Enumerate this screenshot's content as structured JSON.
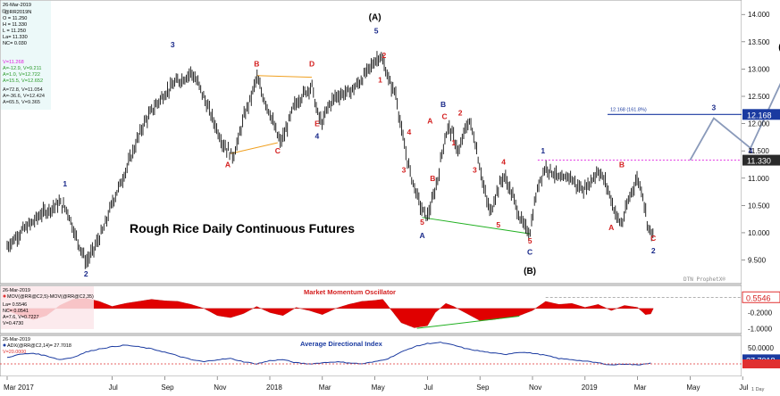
{
  "chart_data": [
    {
      "type": "bar",
      "panel": "price",
      "title": "Rough Rice Daily Continuous Futures",
      "watermark": "DTN ProphetX®",
      "ylim": [
        9.1,
        14.2
      ],
      "y_ticks": [
        "9.500",
        "10.000",
        "10.500",
        "11.000",
        "11.500",
        "12.000",
        "12.500",
        "13.000",
        "13.500",
        "14.000"
      ],
      "y_tick_values": [
        9.5,
        10.0,
        10.5,
        11.0,
        11.5,
        12.0,
        12.5,
        13.0,
        13.5,
        14.0
      ],
      "x_ticks": [
        "Mar 2017",
        "Jul",
        "Sep",
        "Nov",
        "2018",
        "Mar",
        "May",
        "Jul",
        "Sep",
        "Nov",
        "2019",
        "Mar",
        "May",
        "Jul"
      ],
      "x_tick_months": [
        0,
        4,
        6,
        8,
        10,
        12,
        14,
        16,
        18,
        20,
        22,
        24,
        26,
        28
      ],
      "last_month": 24.6,
      "price_path": [
        [
          0,
          9.75
        ],
        [
          0.6,
          10.05
        ],
        [
          1.0,
          10.2
        ],
        [
          1.3,
          10.35
        ],
        [
          1.7,
          10.45
        ],
        [
          2.0,
          10.55
        ],
        [
          2.3,
          10.4
        ],
        [
          2.6,
          9.95
        ],
        [
          2.9,
          9.6
        ],
        [
          3.0,
          9.45
        ],
        [
          3.3,
          9.7
        ],
        [
          3.7,
          10.1
        ],
        [
          4.0,
          10.55
        ],
        [
          4.4,
          11.0
        ],
        [
          4.8,
          11.5
        ],
        [
          5.2,
          12.0
        ],
        [
          5.6,
          12.3
        ],
        [
          6.0,
          12.55
        ],
        [
          6.4,
          12.75
        ],
        [
          6.8,
          12.85
        ],
        [
          7.0,
          12.95
        ],
        [
          7.3,
          12.7
        ],
        [
          7.6,
          12.35
        ],
        [
          7.9,
          12.0
        ],
        [
          8.2,
          11.65
        ],
        [
          8.5,
          11.45
        ],
        [
          8.6,
          11.4
        ],
        [
          8.8,
          11.7
        ],
        [
          9.0,
          12.1
        ],
        [
          9.3,
          12.5
        ],
        [
          9.5,
          12.85
        ],
        [
          9.7,
          12.55
        ],
        [
          10.0,
          12.2
        ],
        [
          10.2,
          11.9
        ],
        [
          10.4,
          11.65
        ],
        [
          10.6,
          11.85
        ],
        [
          10.9,
          12.3
        ],
        [
          11.2,
          12.5
        ],
        [
          11.4,
          12.6
        ],
        [
          11.6,
          12.7
        ],
        [
          11.8,
          12.2
        ],
        [
          12.0,
          12.0
        ],
        [
          12.2,
          12.3
        ],
        [
          12.5,
          12.5
        ],
        [
          12.8,
          12.55
        ],
        [
          13.1,
          12.6
        ],
        [
          13.4,
          12.75
        ],
        [
          13.7,
          12.95
        ],
        [
          14.0,
          13.15
        ],
        [
          14.2,
          13.25
        ],
        [
          14.4,
          13.0
        ],
        [
          14.6,
          12.7
        ],
        [
          14.8,
          12.55
        ],
        [
          15.0,
          11.9
        ],
        [
          15.2,
          11.4
        ],
        [
          15.4,
          11.0
        ],
        [
          15.6,
          10.7
        ],
        [
          15.8,
          10.4
        ],
        [
          16.0,
          10.3
        ],
        [
          16.2,
          10.6
        ],
        [
          16.4,
          11.0
        ],
        [
          16.6,
          11.6
        ],
        [
          16.8,
          11.95
        ],
        [
          17.0,
          11.75
        ],
        [
          17.2,
          11.45
        ],
        [
          17.4,
          11.85
        ],
        [
          17.6,
          12.05
        ],
        [
          17.8,
          11.7
        ],
        [
          18.0,
          11.2
        ],
        [
          18.2,
          10.7
        ],
        [
          18.4,
          10.35
        ],
        [
          18.6,
          10.7
        ],
        [
          18.9,
          11.05
        ],
        [
          19.1,
          10.85
        ],
        [
          19.3,
          10.6
        ],
        [
          19.5,
          10.3
        ],
        [
          19.7,
          10.1
        ],
        [
          19.9,
          10.0
        ],
        [
          20.1,
          10.6
        ],
        [
          20.3,
          11.0
        ],
        [
          20.5,
          11.2
        ],
        [
          20.8,
          11.1
        ],
        [
          21.1,
          10.95
        ],
        [
          21.4,
          11.05
        ],
        [
          21.7,
          10.85
        ],
        [
          22.0,
          10.8
        ],
        [
          22.3,
          11.0
        ],
        [
          22.5,
          11.15
        ],
        [
          22.8,
          10.9
        ],
        [
          23.0,
          10.6
        ],
        [
          23.2,
          10.3
        ],
        [
          23.4,
          10.15
        ],
        [
          23.6,
          10.5
        ],
        [
          23.8,
          10.8
        ],
        [
          24.0,
          11.0
        ],
        [
          24.2,
          10.7
        ],
        [
          24.4,
          10.1
        ],
        [
          24.6,
          9.95
        ],
        [
          24.8,
          10.3
        ],
        [
          25.0,
          10.6
        ],
        [
          25.2,
          10.85
        ],
        [
          25.4,
          11.0
        ],
        [
          25.6,
          11.1
        ],
        [
          25.8,
          11.2
        ],
        [
          26.0,
          11.33
        ]
      ],
      "last_price": "11.330",
      "target_price": "12.168",
      "target_label": "12.168 (161.8%)",
      "wave_labels": [
        {
          "t": "1",
          "m": 2.2,
          "v": 10.85,
          "c": "#1a2a8a"
        },
        {
          "t": "2",
          "m": 3.0,
          "v": 9.2,
          "c": "#1a2a8a"
        },
        {
          "t": "3",
          "m": 6.3,
          "v": 13.4,
          "c": "#1a2a8a"
        },
        {
          "t": "A",
          "m": 8.4,
          "v": 11.2,
          "c": "#d42020"
        },
        {
          "t": "B",
          "m": 9.5,
          "v": 13.05,
          "c": "#d42020"
        },
        {
          "t": "C",
          "m": 10.3,
          "v": 11.45,
          "c": "#d42020"
        },
        {
          "t": "D",
          "m": 11.6,
          "v": 13.05,
          "c": "#d42020"
        },
        {
          "t": "E",
          "m": 11.8,
          "v": 11.95,
          "c": "#d42020"
        },
        {
          "t": "4",
          "m": 11.8,
          "v": 11.72,
          "c": "#1a2a8a"
        },
        {
          "t": "(A)",
          "m": 14.0,
          "v": 13.9,
          "c": "#000000"
        },
        {
          "t": "5",
          "m": 14.05,
          "v": 13.65,
          "c": "#1a2a8a"
        },
        {
          "t": "2",
          "m": 14.35,
          "v": 13.2,
          "c": "#d42020"
        },
        {
          "t": "1",
          "m": 14.2,
          "v": 12.75,
          "c": "#d42020"
        },
        {
          "t": "4",
          "m": 15.3,
          "v": 11.8,
          "c": "#d42020"
        },
        {
          "t": "3",
          "m": 15.1,
          "v": 11.1,
          "c": "#d42020"
        },
        {
          "t": "5",
          "m": 15.8,
          "v": 10.15,
          "c": "#d42020"
        },
        {
          "t": "A",
          "m": 15.8,
          "v": 9.9,
          "c": "#1a2a8a"
        },
        {
          "t": "A",
          "m": 16.1,
          "v": 12.0,
          "c": "#d42020"
        },
        {
          "t": "B",
          "m": 16.2,
          "v": 10.95,
          "c": "#d42020"
        },
        {
          "t": "B",
          "m": 16.6,
          "v": 12.3,
          "c": "#1a2a8a"
        },
        {
          "t": "C",
          "m": 16.65,
          "v": 12.08,
          "c": "#d42020"
        },
        {
          "t": "2",
          "m": 17.25,
          "v": 12.15,
          "c": "#d42020"
        },
        {
          "t": "1",
          "m": 17.0,
          "v": 11.6,
          "c": "#d42020"
        },
        {
          "t": "3",
          "m": 17.8,
          "v": 11.1,
          "c": "#d42020"
        },
        {
          "t": "4",
          "m": 18.9,
          "v": 11.25,
          "c": "#d42020"
        },
        {
          "t": "5",
          "m": 18.7,
          "v": 10.1,
          "c": "#d42020"
        },
        {
          "t": "5",
          "m": 19.9,
          "v": 9.8,
          "c": "#d42020"
        },
        {
          "t": "C",
          "m": 19.9,
          "v": 9.6,
          "c": "#1a2a8a"
        },
        {
          "t": "(B)",
          "m": 19.9,
          "v": 9.25,
          "c": "#000000"
        },
        {
          "t": "1",
          "m": 20.4,
          "v": 11.45,
          "c": "#1a2a8a"
        },
        {
          "t": "A",
          "m": 23.0,
          "v": 10.05,
          "c": "#d42020"
        },
        {
          "t": "B",
          "m": 23.4,
          "v": 11.2,
          "c": "#d42020"
        },
        {
          "t": "C",
          "m": 24.6,
          "v": 9.85,
          "c": "#d42020"
        },
        {
          "t": "2",
          "m": 24.6,
          "v": 9.62,
          "c": "#1a2a8a"
        },
        {
          "t": "3",
          "m": 26.9,
          "v": 12.25,
          "c": "#1a2a8a"
        },
        {
          "t": "4",
          "m": 28.3,
          "v": 11.45,
          "c": "#1a2a8a"
        },
        {
          "t": "5",
          "m": 29.7,
          "v": 13.15,
          "c": "#1a2a8a"
        },
        {
          "t": "(C)",
          "m": 29.6,
          "v": 13.35,
          "c": "#000000"
        }
      ]
    },
    {
      "type": "area",
      "panel": "oscillator",
      "title": "Market Momentum Oscillator",
      "y_ticks": [
        "-0.2000",
        "-1.0000"
      ],
      "y_tick_values": [
        -0.2,
        -1.0
      ],
      "ylim": [
        -1.15,
        1.05
      ],
      "last_value": "0.5546",
      "values_monthly": [
        [
          0,
          -0.1
        ],
        [
          0.5,
          -0.35
        ],
        [
          1.0,
          -0.55
        ],
        [
          1.5,
          -0.35
        ],
        [
          2.0,
          0.15
        ],
        [
          2.5,
          0.45
        ],
        [
          3.0,
          0.5
        ],
        [
          3.5,
          0.35
        ],
        [
          4.0,
          0.1
        ],
        [
          4.5,
          0.25
        ],
        [
          5.0,
          0.35
        ],
        [
          5.5,
          0.45
        ],
        [
          6.0,
          0.38
        ],
        [
          6.5,
          0.35
        ],
        [
          7.0,
          0.2
        ],
        [
          7.5,
          0.0
        ],
        [
          8.0,
          -0.35
        ],
        [
          8.5,
          -0.45
        ],
        [
          9.0,
          -0.25
        ],
        [
          9.5,
          0.1
        ],
        [
          10.0,
          -0.2
        ],
        [
          10.5,
          -0.35
        ],
        [
          11.0,
          0.05
        ],
        [
          11.5,
          -0.1
        ],
        [
          12.0,
          -0.3
        ],
        [
          12.5,
          0.0
        ],
        [
          13.0,
          0.2
        ],
        [
          13.5,
          0.35
        ],
        [
          14.0,
          0.4
        ],
        [
          14.3,
          0.45
        ],
        [
          14.7,
          -0.2
        ],
        [
          15.0,
          -0.7
        ],
        [
          15.5,
          -0.95
        ],
        [
          16.0,
          -0.85
        ],
        [
          16.3,
          -0.2
        ],
        [
          16.7,
          0.25
        ],
        [
          17.0,
          0.1
        ],
        [
          17.5,
          -0.25
        ],
        [
          18.0,
          -0.6
        ],
        [
          18.5,
          -0.55
        ],
        [
          19.0,
          -0.45
        ],
        [
          19.5,
          -0.35
        ],
        [
          20.0,
          -0.1
        ],
        [
          20.5,
          0.35
        ],
        [
          21.0,
          0.2
        ],
        [
          21.5,
          0.25
        ],
        [
          22.0,
          0.05
        ],
        [
          22.5,
          0.2
        ],
        [
          23.0,
          -0.1
        ],
        [
          23.5,
          0.15
        ],
        [
          24.0,
          0.05
        ],
        [
          24.3,
          -0.3
        ],
        [
          24.6,
          -0.25
        ],
        [
          25.0,
          0.15
        ],
        [
          25.5,
          0.35
        ],
        [
          26.0,
          0.55
        ]
      ]
    },
    {
      "type": "line",
      "panel": "adx",
      "title": "Average Directional Index",
      "y_ticks": [
        "50.0000"
      ],
      "y_tick_values": [
        50
      ],
      "ylim": [
        0,
        70
      ],
      "threshold": 20,
      "last_value": "27.7018",
      "values_monthly": [
        [
          0,
          32
        ],
        [
          0.5,
          38
        ],
        [
          1.0,
          40
        ],
        [
          1.5,
          35
        ],
        [
          2.0,
          28
        ],
        [
          2.5,
          32
        ],
        [
          3.0,
          42
        ],
        [
          3.5,
          48
        ],
        [
          4.0,
          52
        ],
        [
          4.5,
          55
        ],
        [
          5.0,
          52
        ],
        [
          5.5,
          48
        ],
        [
          6.0,
          42
        ],
        [
          6.5,
          35
        ],
        [
          7.0,
          28
        ],
        [
          7.5,
          24
        ],
        [
          8.0,
          28
        ],
        [
          8.5,
          30
        ],
        [
          9.0,
          24
        ],
        [
          9.5,
          20
        ],
        [
          10.0,
          26
        ],
        [
          10.5,
          28
        ],
        [
          11.0,
          22
        ],
        [
          11.5,
          20
        ],
        [
          12.0,
          22
        ],
        [
          12.5,
          24
        ],
        [
          13.0,
          22
        ],
        [
          13.5,
          20
        ],
        [
          14.0,
          24
        ],
        [
          14.5,
          30
        ],
        [
          15.0,
          42
        ],
        [
          15.5,
          52
        ],
        [
          16.0,
          58
        ],
        [
          16.5,
          60
        ],
        [
          17.0,
          55
        ],
        [
          17.5,
          48
        ],
        [
          18.0,
          44
        ],
        [
          18.5,
          40
        ],
        [
          19.0,
          38
        ],
        [
          19.5,
          42
        ],
        [
          20.0,
          40
        ],
        [
          20.5,
          36
        ],
        [
          21.0,
          30
        ],
        [
          21.5,
          28
        ],
        [
          22.0,
          25
        ],
        [
          22.5,
          22
        ],
        [
          23.0,
          18
        ],
        [
          23.5,
          20
        ],
        [
          24.0,
          18
        ],
        [
          24.5,
          22
        ],
        [
          25.0,
          19
        ],
        [
          25.5,
          22
        ],
        [
          26.0,
          27.7
        ]
      ]
    }
  ],
  "info_panel": {
    "date": "26-Mar-2019",
    "symbol": "@RR2019N",
    "lines": [
      "O = 11.250",
      "H = 11.330",
      "L = 11.250",
      "La= 11.330",
      "NC= 0.030"
    ],
    "colored_lines": [
      {
        "t": "V=11.268",
        "c": "#e020e0"
      },
      {
        "t": "A=-12.9, V=9.211",
        "c": "#2a9a2a"
      },
      {
        "t": "A=1.0, V=12.722",
        "c": "#2a9a2a"
      },
      {
        "t": "A=15.5, V=12.652",
        "c": "#2a9a2a"
      },
      {
        "t": "A=72.8, V=11.054",
        "c": "#222222"
      },
      {
        "t": "A=-36.6, V=12.424",
        "c": "#222222"
      },
      {
        "t": "A=65.5, V=9.365",
        "c": "#222222"
      }
    ]
  },
  "osc_panel_info": {
    "date": "26-Mar-2019",
    "header": "MOV(@RR@C2,5)-MOV(@RR@C2,35)",
    "lines": [
      "La= 0.5546",
      "NC= 0.0541",
      "A=7.6, V=0.7227",
      "V=0.4730"
    ]
  },
  "adx_panel_info": {
    "date": "26-Mar-2019",
    "header": "ADX(@RR@C2,14)= 27.7018",
    "lines": [
      "V=20.0000"
    ]
  },
  "corner_label": "1 Day",
  "colors": {
    "bars": "#111111",
    "wave_red": "#d42020",
    "wave_blue": "#1a2a8a",
    "projection": "#8a9aba",
    "target_line": "#1a3aa0",
    "magenta_line": "#e020e0",
    "orange_line": "#f0a020",
    "green_line": "#20b020",
    "osc_fill": "#e00000",
    "adx_line": "#1a3aa0",
    "adx_threshold": "#e03030"
  }
}
